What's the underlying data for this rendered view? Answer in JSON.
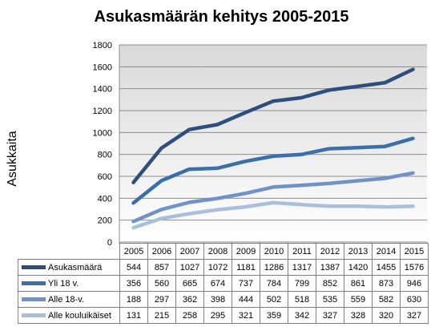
{
  "chart_data": {
    "type": "line",
    "title": "Asukasmäärän kehitys 2005-2015",
    "ylabel": "Asukkaita",
    "xlabel": "",
    "categories": [
      "2005",
      "2006",
      "2007",
      "2008",
      "2009",
      "2010",
      "2011",
      "2012",
      "2013",
      "2014",
      "2015"
    ],
    "ylim": [
      0,
      1800
    ],
    "yticks": [
      "0",
      "200",
      "400",
      "600",
      "800",
      "1000",
      "1200",
      "1400",
      "1600",
      "1800"
    ],
    "grid": true,
    "legend": "data table below chart",
    "series": [
      {
        "name": "Asukasmäärä",
        "color": "#2e4e7e",
        "values": [
          544,
          857,
          1027,
          1072,
          1181,
          1286,
          1317,
          1387,
          1420,
          1455,
          1576
        ]
      },
      {
        "name": "Yli 18 v.",
        "color": "#3a6faa",
        "values": [
          356,
          560,
          665,
          674,
          737,
          784,
          799,
          852,
          861,
          873,
          946
        ]
      },
      {
        "name": "Alle 18-v.",
        "color": "#6f93c8",
        "values": [
          188,
          297,
          362,
          398,
          444,
          502,
          518,
          535,
          559,
          582,
          630
        ]
      },
      {
        "name": "Alle kouluikäiset",
        "color": "#a9bfdd",
        "values": [
          131,
          215,
          258,
          295,
          321,
          359,
          342,
          327,
          328,
          320,
          327
        ]
      }
    ]
  }
}
